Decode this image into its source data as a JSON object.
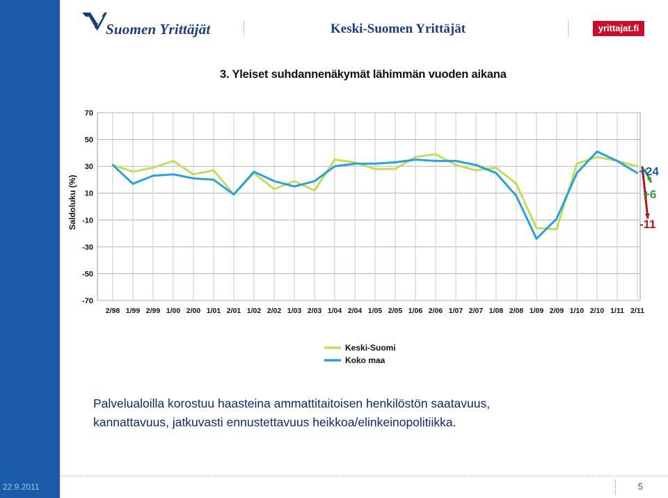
{
  "header": {
    "logo_left_text": "Suomen Yrittäjät",
    "center_title": "Keski-Suomen Yrittäjät",
    "logo_right_text": "yrittajat.fi"
  },
  "chart_title": "3. Yleiset suhdannenäkymät lähimmän vuoden aikana",
  "annotations": {
    "plus24": "+24",
    "plus6": "+6",
    "minus11": "-11",
    "colors": {
      "plus24": "#1d5aa8",
      "plus6": "#3a9a3a",
      "minus11": "#b01515"
    }
  },
  "caption_line1": "Palvelualoilla korostuu haasteina ammattitaitoisen henkilöstön saatavuus,",
  "caption_line2": "kannattavuus, jatkuvasti ennustettavuus heikkoa/elinkeinopolitiikka.",
  "footer": {
    "date": "22.9.2011",
    "page": "5"
  },
  "chart_data": {
    "type": "line",
    "title": "3. Yleiset suhdannenäkymät lähimmän vuoden aikana",
    "ylabel": "Saldoluku (%)",
    "xlabel": "",
    "ylim": [
      -70,
      70
    ],
    "yticks": [
      70,
      50,
      30,
      10,
      -10,
      -30,
      -50,
      -70
    ],
    "grid": true,
    "legend_position": "bottom",
    "categories": [
      "2/98",
      "1/99",
      "2/99",
      "1/00",
      "2/00",
      "1/01",
      "2/01",
      "1/02",
      "2/02",
      "1/03",
      "2/03",
      "1/04",
      "2/04",
      "1/05",
      "2/05",
      "1/06",
      "2/06",
      "1/07",
      "2/07",
      "1/08",
      "2/08",
      "1/09",
      "2/09",
      "1/10",
      "2/10",
      "1/11",
      "2/11"
    ],
    "series": [
      {
        "name": "Keski-Suomi",
        "color": "#c3dc5a",
        "values": [
          31,
          26,
          29,
          34,
          24,
          27,
          9,
          25,
          13,
          19,
          12,
          35,
          33,
          28,
          28,
          37,
          39,
          31,
          27,
          29,
          17,
          -16,
          -17,
          32,
          37,
          34,
          30
        ]
      },
      {
        "name": "Koko maa",
        "color": "#2aa1d8",
        "values": [
          31,
          17,
          23,
          24,
          21,
          20,
          9,
          26,
          19,
          15,
          19,
          30,
          32,
          32,
          33,
          35,
          34,
          34,
          31,
          25,
          8,
          -24,
          -9,
          25,
          41,
          34,
          25
        ]
      }
    ]
  }
}
